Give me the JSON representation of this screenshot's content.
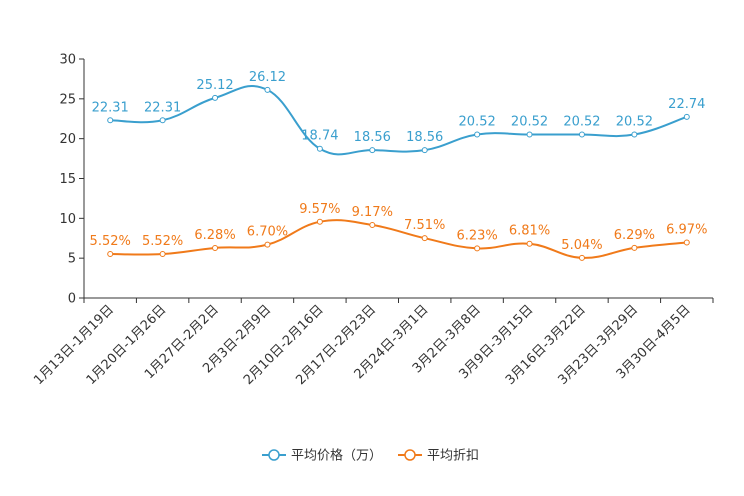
{
  "chart_data": {
    "type": "line",
    "title": "",
    "xlabel": "",
    "ylabel": "",
    "ylim": [
      0,
      30
    ],
    "yticks": [
      0,
      5,
      10,
      15,
      20,
      25,
      30
    ],
    "grid": false,
    "legend_position": "bottom-center",
    "categories": [
      "1月13日-1月19日",
      "1月20日-1月26日",
      "1月27日-2月2日",
      "2月3日-2月9日",
      "2月10日-2月16日",
      "2月17日-2月23日",
      "2月24日-3月1日",
      "3月2日-3月8日",
      "3月9日-3月15日",
      "3月16日-3月22日",
      "3月23日-3月29日",
      "3月30日-4月5日"
    ],
    "series": [
      {
        "name": "平均价格（万）",
        "color": "#3a9fce",
        "values": [
          22.31,
          22.31,
          25.12,
          26.12,
          18.74,
          18.56,
          18.56,
          20.52,
          20.52,
          20.52,
          20.52,
          22.74
        ],
        "labels": [
          "22.31",
          "22.31",
          "25.12",
          "26.12",
          "18.74",
          "18.56",
          "18.56",
          "20.52",
          "20.52",
          "20.52",
          "20.52",
          "22.74"
        ]
      },
      {
        "name": "平均折扣",
        "color": "#f07a1a",
        "values": [
          5.52,
          5.52,
          6.28,
          6.7,
          9.57,
          9.17,
          7.51,
          6.23,
          6.81,
          5.04,
          6.29,
          6.97
        ],
        "labels": [
          "5.52%",
          "5.52%",
          "6.28%",
          "6.70%",
          "9.57%",
          "9.17%",
          "7.51%",
          "6.23%",
          "6.81%",
          "5.04%",
          "6.29%",
          "6.97%"
        ]
      }
    ]
  }
}
